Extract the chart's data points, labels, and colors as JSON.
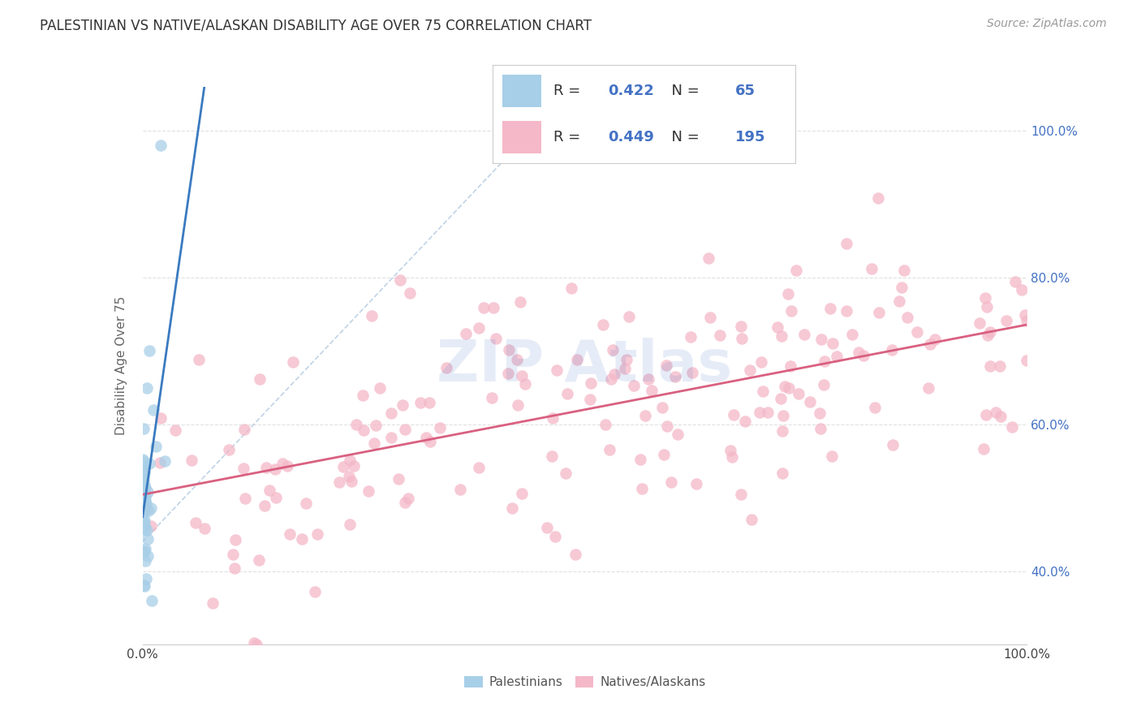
{
  "title": "PALESTINIAN VS NATIVE/ALASKAN DISABILITY AGE OVER 75 CORRELATION CHART",
  "source": "Source: ZipAtlas.com",
  "ylabel": "Disability Age Over 75",
  "legend_label1": "Palestinians",
  "legend_label2": "Natives/Alaskans",
  "R1": "0.422",
  "N1": "65",
  "R2": "0.449",
  "N2": "195",
  "color_blue": "#a8cfe8",
  "color_pink": "#f4b8c8",
  "color_line_blue": "#3a7abf",
  "color_line_pink": "#d96080",
  "color_diag": "#b0c8e0",
  "watermark_text": "ZIP Atlas",
  "watermark_color": "#4472c4",
  "xmin": 0.0,
  "xmax": 1.0,
  "ymin": 0.3,
  "ymax": 1.06,
  "yticks": [
    0.4,
    0.6,
    0.8,
    1.0
  ],
  "ytick_labels": [
    "40.0%",
    "60.0%",
    "80.0%",
    "100.0%"
  ],
  "xtick_left": "0.0%",
  "xtick_right": "100.0%",
  "grid_color": "#e0e0e0",
  "spine_color": "#cccccc",
  "title_fontsize": 12,
  "source_fontsize": 10,
  "tick_fontsize": 11,
  "ylabel_fontsize": 11,
  "legend_fontsize": 13,
  "watermark_fontsize": 52,
  "watermark_alpha": 0.13
}
